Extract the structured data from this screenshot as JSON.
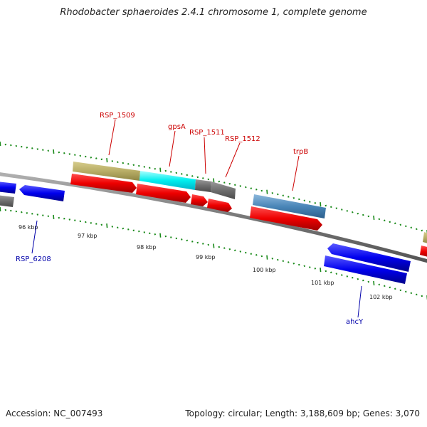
{
  "title": "Rhodobacter sphaeroides 2.4.1 chromosome 1, complete genome",
  "footer": {
    "accession": "Accession: NC_007493",
    "topology": "Topology: circular; Length: 3,188,609 bp; Genes: 3,070"
  },
  "colors": {
    "forward_label": "#cc0000",
    "reverse_label": "#0000aa",
    "tick": "#1a8a1a",
    "backbone": "#777777"
  },
  "scale_labels": [
    "96 kbp",
    "97 kbp",
    "98 kbp",
    "99 kbp",
    "100 kbp",
    "101 kbp",
    "102 kbp"
  ],
  "gene_labels": {
    "rsp1509": "RSP_1509",
    "gpsA": "gpsA",
    "rsp1511": "RSP_1511",
    "rsp1512": "RSP_1512",
    "trpB": "trpB",
    "rsp6208": "RSP_6208",
    "ahcY": "ahcY"
  }
}
